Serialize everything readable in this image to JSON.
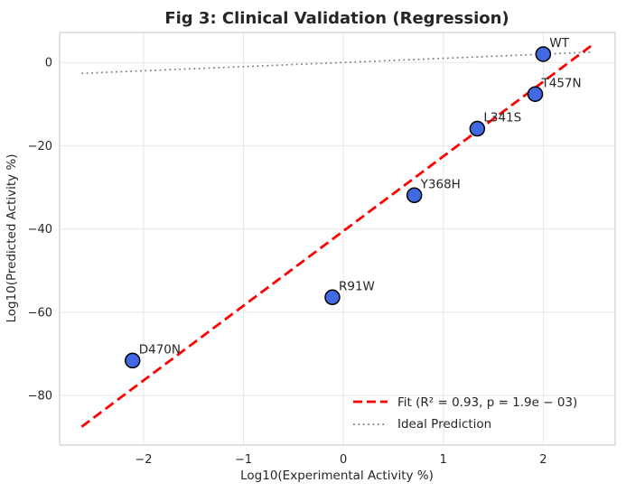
{
  "chart_data": {
    "type": "scatter",
    "title": "Fig 3: Clinical Validation (Regression)",
    "xlabel": "Log10(Experimental Activity %)",
    "ylabel": "Log10(Predicted Activity %)",
    "xlim": [
      -2.84,
      2.72
    ],
    "ylim": [
      -91.9,
      7.2
    ],
    "xticks": [
      -2,
      -1,
      0,
      1,
      2
    ],
    "yticks": [
      0,
      -20,
      -40,
      -60,
      -80
    ],
    "grid": true,
    "points": [
      {
        "label": "WT",
        "x": 2.0,
        "y": 2.0
      },
      {
        "label": "T457N",
        "x": 1.92,
        "y": -7.6
      },
      {
        "label": "L341S",
        "x": 1.34,
        "y": -15.9
      },
      {
        "label": "Y368H",
        "x": 0.71,
        "y": -31.9
      },
      {
        "label": "R91W",
        "x": -0.11,
        "y": -56.4
      },
      {
        "label": "D470N",
        "x": -2.11,
        "y": -71.6
      }
    ],
    "fit_line": {
      "label": "Fit (R² = 0.93, p = 1.9e − 03)",
      "x": [
        -2.62,
        2.48
      ],
      "y": [
        -87.5,
        4.0
      ],
      "style": "dashed"
    },
    "ideal_line": {
      "label": "Ideal Prediction",
      "x": [
        -2.62,
        2.48
      ],
      "y": [
        -2.62,
        2.48
      ],
      "style": "dotted"
    },
    "legend_position": "lower right",
    "colors": {
      "marker_fill": "#4169e1",
      "marker_edge": "#000000",
      "fit_line": "#ff0000",
      "ideal_line": "#7f7f7f",
      "grid": "#e7e7e7",
      "spine": "#cfcfcf",
      "text": "#262626"
    }
  }
}
